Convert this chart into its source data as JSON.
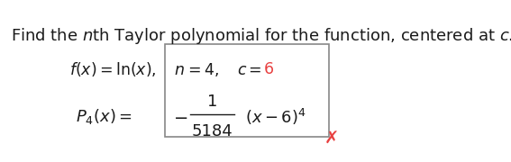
{
  "cross_color": "#e84040",
  "box_color": "#888888",
  "background": "#ffffff",
  "text_color": "#1a1a1a",
  "title_fontsize": 13,
  "line2_fontsize": 12.5,
  "formula_fontsize": 13
}
